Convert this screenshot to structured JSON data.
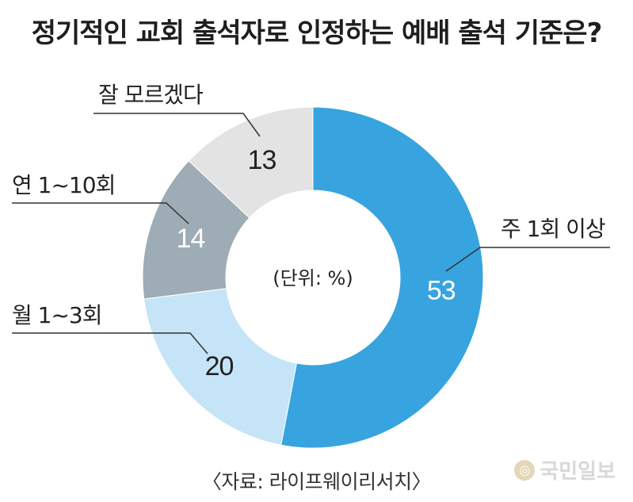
{
  "chart_data": {
    "type": "pie",
    "title": "정기적인 교회 출석자로 인정하는 예배 출석 기준은?",
    "center_label": "(단위: %)",
    "source": "〈자료: 라이프웨이리서치〉",
    "slices": [
      {
        "label": "주 1회 이상",
        "value": 53,
        "color": "#38a4df",
        "value_color": "#ffffff"
      },
      {
        "label": "월 1~3회",
        "value": 20,
        "color": "#c6e4f7",
        "value_color": "#222222"
      },
      {
        "label": "연 1~10회",
        "value": 14,
        "color": "#9eacb5",
        "value_color": "#ffffff"
      },
      {
        "label": "잘 모르겠다",
        "value": 13,
        "color": "#e3e3e3",
        "value_color": "#222222"
      }
    ]
  },
  "watermark": {
    "text": "국민일보"
  }
}
